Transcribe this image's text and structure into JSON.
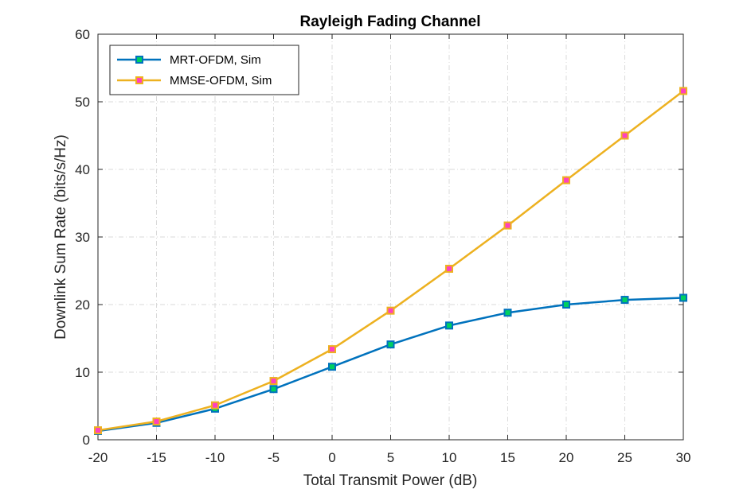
{
  "chart_data": {
    "type": "line",
    "title": "Rayleigh Fading Channel",
    "xlabel": "Total Transmit Power (dB)",
    "ylabel": "Downlink Sum Rate (bits/s/Hz)",
    "xlim": [
      -20,
      30
    ],
    "ylim": [
      0,
      60
    ],
    "xticks": [
      "-20",
      "-15",
      "-10",
      "-5",
      "0",
      "5",
      "10",
      "15",
      "20",
      "25",
      "30"
    ],
    "yticks": [
      "0",
      "10",
      "20",
      "30",
      "40",
      "50",
      "60"
    ],
    "grid": true,
    "legend_position": "top-left",
    "x": [
      -20,
      -15,
      -10,
      -5,
      0,
      5,
      10,
      15,
      20,
      25,
      30
    ],
    "series": [
      {
        "name": "MRT-OFDM, Sim",
        "values": [
          1.3,
          2.5,
          4.6,
          7.5,
          10.8,
          14.1,
          16.9,
          18.8,
          20.0,
          20.7,
          21.0
        ],
        "color": "#0072BD",
        "marker_face": "#00D060",
        "marker": "square"
      },
      {
        "name": "MMSE-OFDM, Sim",
        "values": [
          1.4,
          2.7,
          5.1,
          8.7,
          13.4,
          19.1,
          25.3,
          31.7,
          38.4,
          45.0,
          51.6
        ],
        "color": "#EDB120",
        "marker_face": "#FF40C0",
        "marker": "square"
      }
    ]
  }
}
